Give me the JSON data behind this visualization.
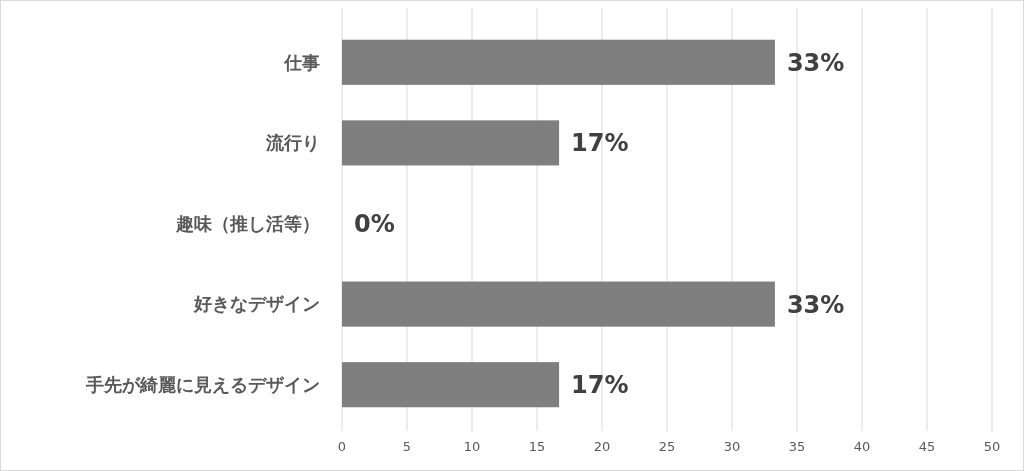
{
  "chart_data": {
    "type": "bar",
    "orientation": "horizontal",
    "categories": [
      "仕事",
      "流行り",
      "趣味（推し活等）",
      "好きなデザイン",
      "手先が綺麗に見えるデザイン"
    ],
    "values": [
      33.3,
      16.7,
      0,
      33.3,
      16.7
    ],
    "value_labels": [
      "33%",
      "17%",
      "0%",
      "33%",
      "17%"
    ],
    "color": "#7f7f7f",
    "xlim": [
      0,
      50
    ],
    "xticks": [
      0,
      5,
      10,
      15,
      20,
      25,
      30,
      35,
      40,
      45,
      50
    ],
    "grid": "x"
  }
}
